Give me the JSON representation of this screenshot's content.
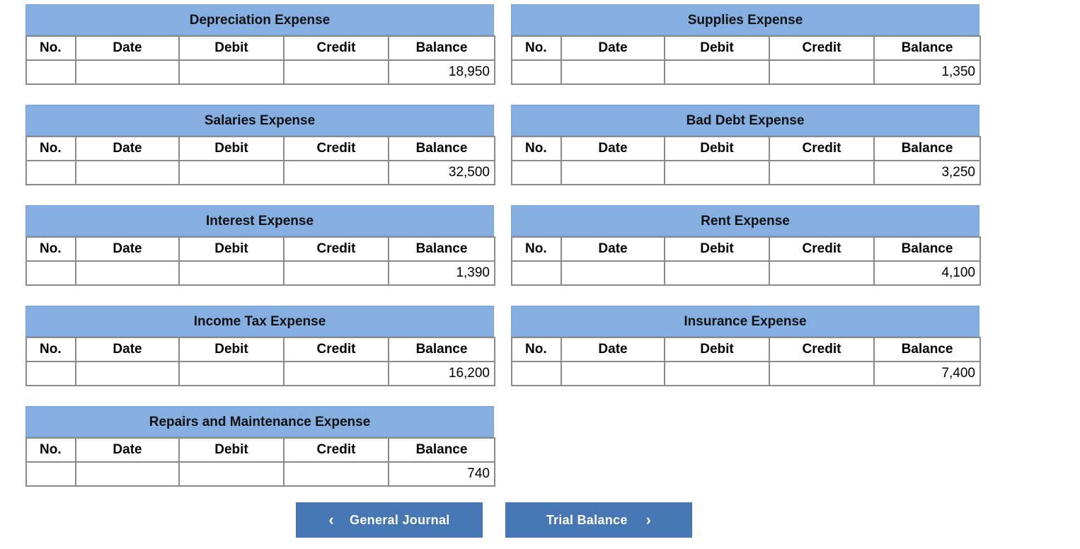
{
  "columns": [
    "No.",
    "Date",
    "Debit",
    "Credit",
    "Balance"
  ],
  "ledgers": [
    {
      "title": "Depreciation Expense",
      "balance": "18,950"
    },
    {
      "title": "Supplies Expense",
      "balance": "1,350"
    },
    {
      "title": "Salaries Expense",
      "balance": "32,500"
    },
    {
      "title": "Bad Debt Expense",
      "balance": "3,250"
    },
    {
      "title": "Interest Expense",
      "balance": "1,390"
    },
    {
      "title": "Rent Expense",
      "balance": "4,100"
    },
    {
      "title": "Income Tax Expense",
      "balance": "16,200"
    },
    {
      "title": "Insurance Expense",
      "balance": "7,400"
    },
    {
      "title": "Repairs and Maintenance Expense",
      "balance": "740"
    }
  ],
  "nav": {
    "prev_label": "General Journal",
    "next_label": "Trial Balance"
  }
}
